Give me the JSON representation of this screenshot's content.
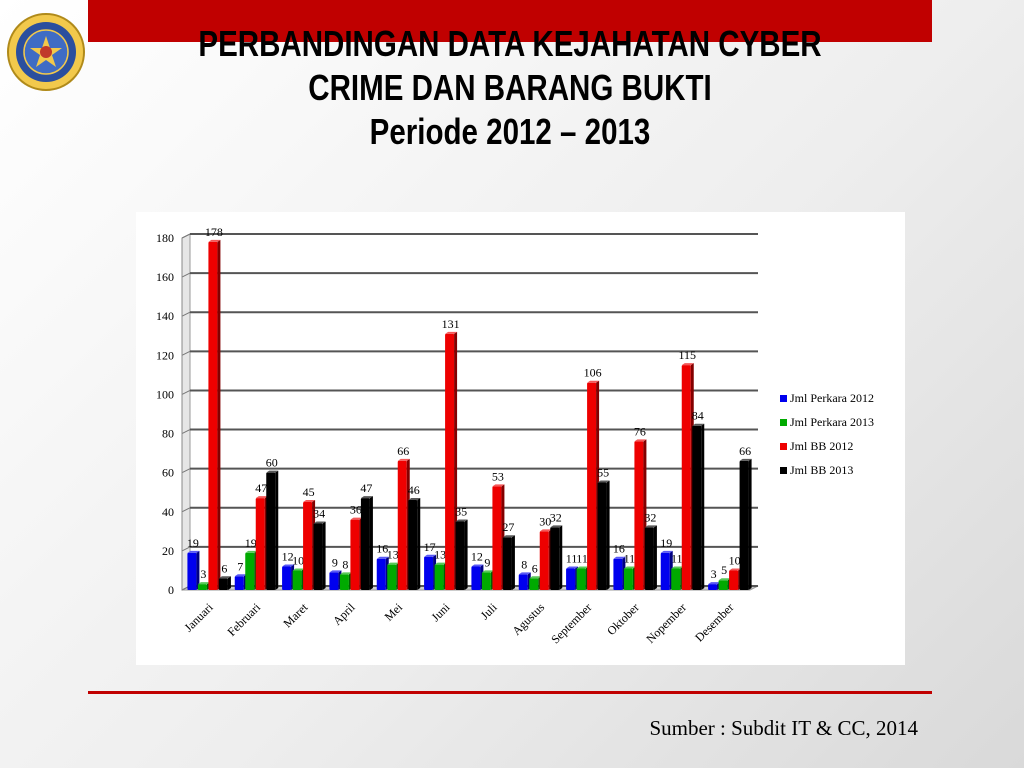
{
  "header": {
    "title_line1": "PERBANDINGAN DATA KEJAHATAN CYBER",
    "title_line2": "CRIME  DAN BARANG BUKTI",
    "title_line3": "Periode 2012 – 2013"
  },
  "logo": {
    "text": "CYBER CRIME INVESTIGATION CENTER • INDONESIAN NATIONAL POLICE",
    "icon": "police-emblem-icon"
  },
  "colors": {
    "accent": "#c00000",
    "series": [
      "#0000ee",
      "#00aa00",
      "#ee0000",
      "#000000"
    ]
  },
  "footer": {
    "source": "Sumber : Subdit IT & CC, 2014"
  },
  "chart_data": {
    "type": "bar",
    "categories": [
      "Januari",
      "Februari",
      "Maret",
      "April",
      "Mei",
      "Juni",
      "Juli",
      "Agustus",
      "September",
      "Oktober",
      "Nopember",
      "Desember"
    ],
    "series": [
      {
        "name": "Jml Perkara 2012",
        "color": "#0000ee",
        "values": [
          19,
          7,
          12,
          9,
          16,
          17,
          12,
          8,
          11,
          16,
          19,
          3
        ]
      },
      {
        "name": "Jml Perkara 2013",
        "color": "#00aa00",
        "values": [
          3,
          19,
          10,
          8,
          13,
          13,
          9,
          6,
          11,
          11,
          11,
          5
        ]
      },
      {
        "name": "Jml BB 2012",
        "color": "#ee0000",
        "values": [
          178,
          47,
          45,
          36,
          66,
          131,
          53,
          30,
          106,
          76,
          115,
          10
        ]
      },
      {
        "name": "Jml BB 2013",
        "color": "#000000",
        "values": [
          6,
          60,
          34,
          47,
          46,
          35,
          27,
          32,
          55,
          32,
          84,
          66
        ]
      }
    ],
    "ylim": [
      0,
      180
    ],
    "yticks": [
      0,
      20,
      40,
      60,
      80,
      100,
      120,
      140,
      160,
      180
    ],
    "grid": true,
    "legend": "right"
  }
}
